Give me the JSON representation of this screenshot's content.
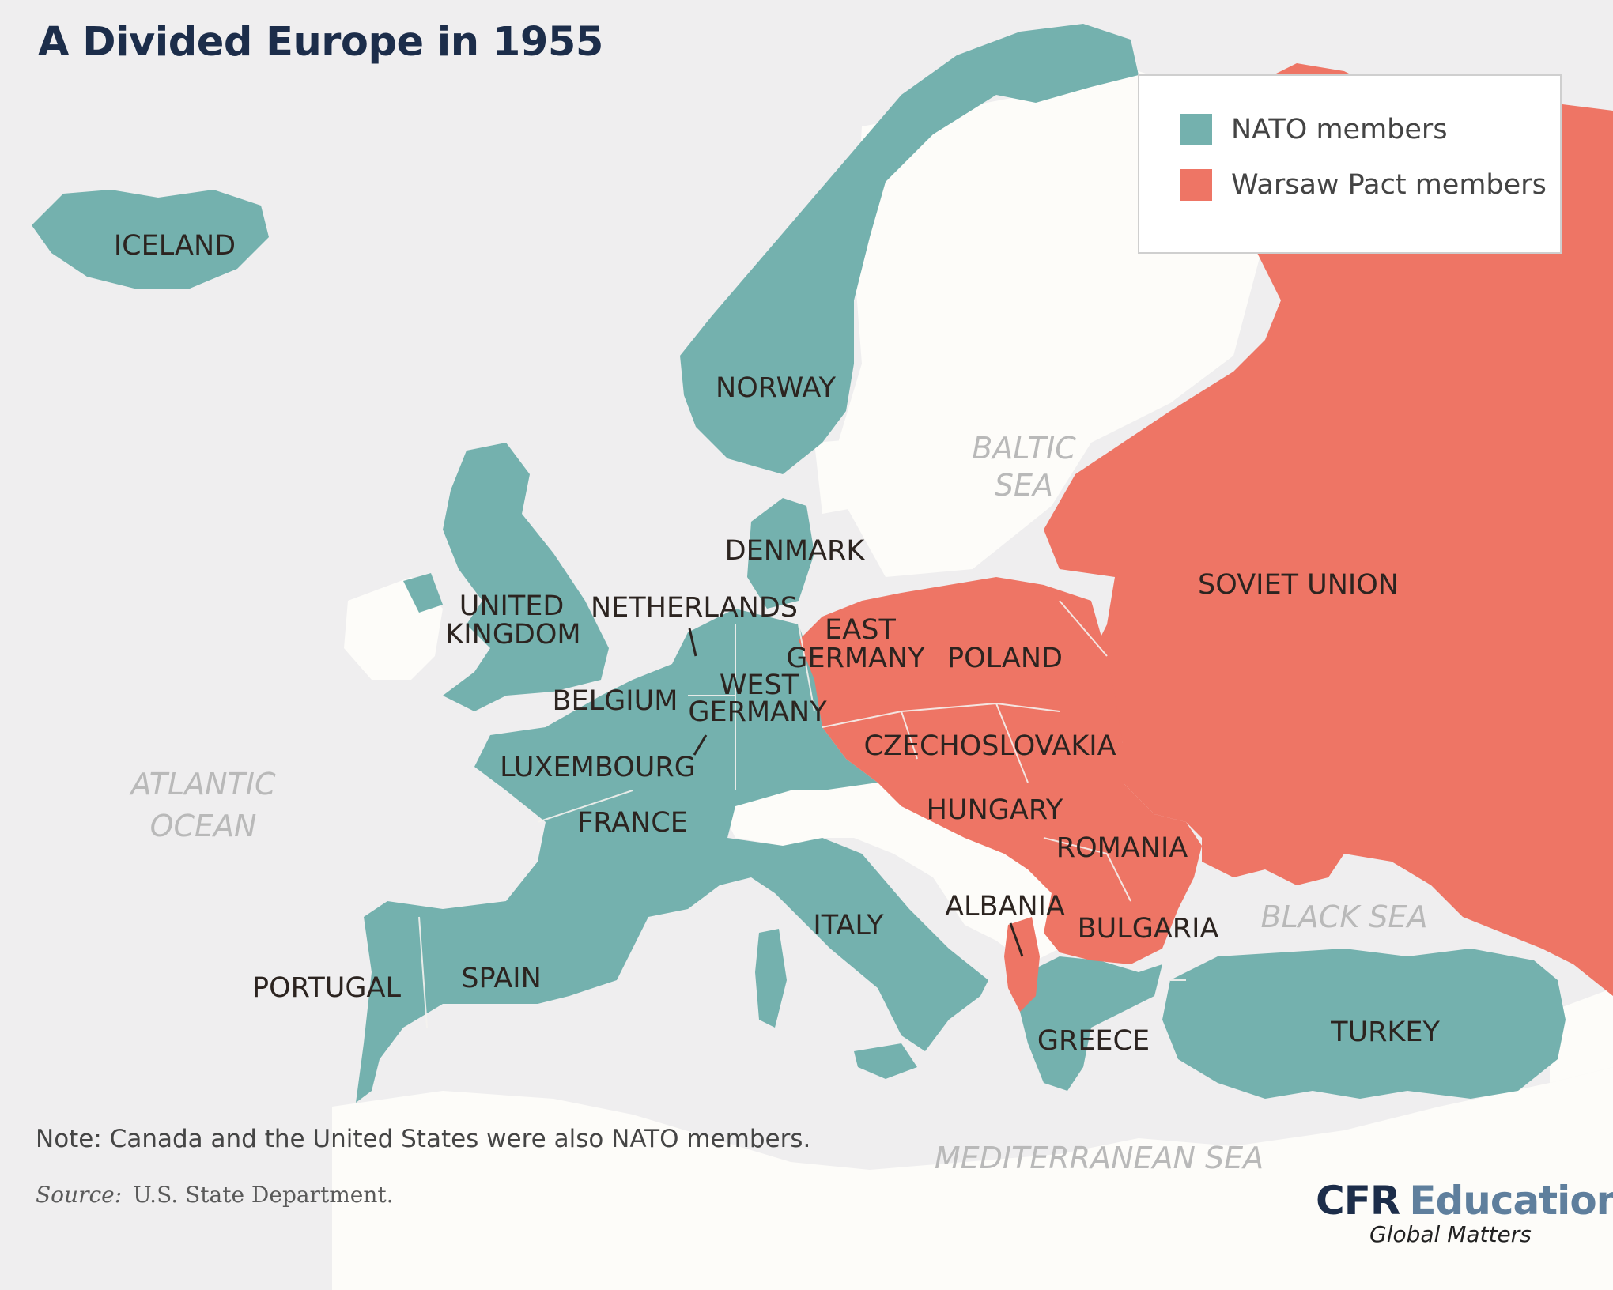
{
  "title": "A Divided Europe in 1955",
  "legend": [
    {
      "label": "NATO members",
      "color": "#74b1ae"
    },
    {
      "label": "Warsaw Pact members",
      "color": "#ee7565"
    }
  ],
  "colors": {
    "nato": "#74b1ae",
    "warsaw": "#ee7565",
    "neutral_land": "#fdfcf9",
    "sea": "#efeeef"
  },
  "countries": {
    "iceland": "ICELAND",
    "norway": "NORWAY",
    "denmark": "DENMARK",
    "uk_1": "UNITED",
    "uk_2": "KINGDOM",
    "netherlands": "NETHERLANDS",
    "east_germany_1": "EAST",
    "east_germany_2": "GERMANY",
    "poland": "POLAND",
    "west_germany_1": "WEST",
    "west_germany_2": "GERMANY",
    "belgium": "BELGIUM",
    "luxembourg": "LUXEMBOURG",
    "czechoslovakia": "CZECHOSLOVAKIA",
    "hungary": "HUNGARY",
    "romania": "ROMANIA",
    "france": "FRANCE",
    "italy": "ITALY",
    "albania": "ALBANIA",
    "bulgaria": "BULGARIA",
    "portugal": "PORTUGAL",
    "spain": "SPAIN",
    "greece": "GREECE",
    "turkey": "TURKEY",
    "soviet_union": "SOVIET UNION"
  },
  "water": {
    "baltic_1": "BALTIC",
    "baltic_2": "SEA",
    "atlantic_1": "ATLANTIC",
    "atlantic_2": "OCEAN",
    "black_sea": "BLACK SEA",
    "mediterranean": "MEDITERRANEAN SEA"
  },
  "note": "Note: Canada and the United States were also NATO members.",
  "source": {
    "label": "Source:",
    "text": "U.S. State Department."
  },
  "brand": {
    "part1": "CFR",
    "part2": "Education",
    "tagline": "Global Matters"
  }
}
